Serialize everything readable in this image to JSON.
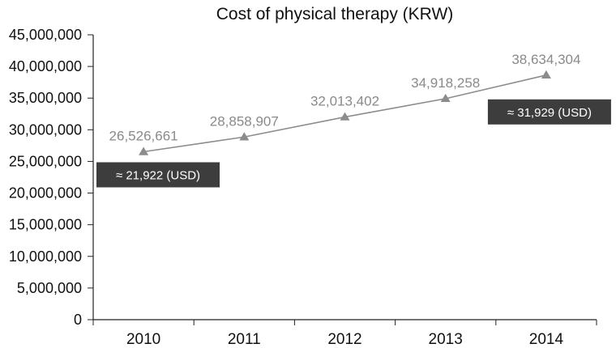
{
  "chart_data": {
    "type": "line",
    "title": "Cost of physical therapy (KRW)",
    "xlabel": "",
    "ylabel": "",
    "categories": [
      "2010",
      "2011",
      "2012",
      "2013",
      "2014"
    ],
    "series": [
      {
        "name": "Cost of physical therapy (KRW)",
        "values": [
          26526661,
          28858907,
          32013402,
          34918258,
          38634304
        ]
      }
    ],
    "data_labels": [
      "26,526,661",
      "28,858,907",
      "32,013,402",
      "34,918,258",
      "38,634,304"
    ],
    "ylim": [
      0,
      45000000
    ],
    "yticks": [
      0,
      5000000,
      10000000,
      15000000,
      20000000,
      25000000,
      30000000,
      35000000,
      40000000,
      45000000
    ],
    "ytick_labels": [
      "0",
      "5,000,000",
      "10,000,000",
      "15,000,000",
      "20,000,000",
      "25,000,000",
      "30,000,000",
      "35,000,000",
      "40,000,000",
      "45,000,000"
    ],
    "annotations": [
      {
        "text": "≈ 21,922 (USD)",
        "category": "2010"
      },
      {
        "text": "≈ 31,929 (USD)",
        "category": "2014"
      }
    ],
    "grid": false,
    "line_color": "#8c8c8c",
    "annotation_box_color": "#3d3d3d"
  }
}
